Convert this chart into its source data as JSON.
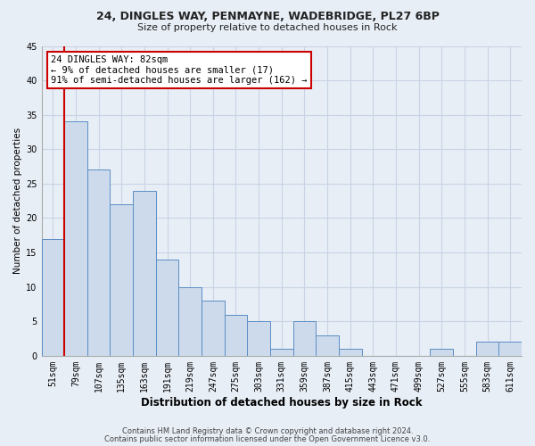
{
  "title1": "24, DINGLES WAY, PENMAYNE, WADEBRIDGE, PL27 6BP",
  "title2": "Size of property relative to detached houses in Rock",
  "xlabel": "Distribution of detached houses by size in Rock",
  "ylabel": "Number of detached properties",
  "categories": [
    "51sqm",
    "79sqm",
    "107sqm",
    "135sqm",
    "163sqm",
    "191sqm",
    "219sqm",
    "247sqm",
    "275sqm",
    "303sqm",
    "331sqm",
    "359sqm",
    "387sqm",
    "415sqm",
    "443sqm",
    "471sqm",
    "499sqm",
    "527sqm",
    "555sqm",
    "583sqm",
    "611sqm"
  ],
  "values": [
    17,
    34,
    27,
    22,
    24,
    14,
    10,
    8,
    6,
    5,
    1,
    5,
    3,
    1,
    0,
    0,
    0,
    1,
    0,
    2,
    2
  ],
  "bar_color": "#ccdaeb",
  "bar_edge_color": "#5b8ec4",
  "grid_color": "#c8d4e4",
  "background_color": "#e8eef6",
  "marker_line_color": "#cc0000",
  "annotation_text": "24 DINGLES WAY: 82sqm\n← 9% of detached houses are smaller (17)\n91% of semi-detached houses are larger (162) →",
  "annotation_box_facecolor": "#ffffff",
  "annotation_border_color": "#cc0000",
  "ylim": [
    0,
    45
  ],
  "yticks": [
    0,
    5,
    10,
    15,
    20,
    25,
    30,
    35,
    40,
    45
  ],
  "footer1": "Contains HM Land Registry data © Crown copyright and database right 2024.",
  "footer2": "Contains public sector information licensed under the Open Government Licence v3.0."
}
